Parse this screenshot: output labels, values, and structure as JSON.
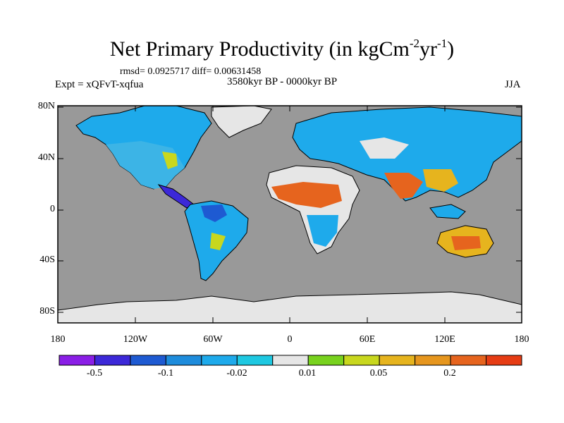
{
  "title_main": "Net Primary Productivity (in kgCm",
  "title_exp1": "-2",
  "title_mid": "yr",
  "title_exp2": "-1",
  "title_end": ")",
  "stats": "rmsd= 0.0925717 diff= 0.00631458",
  "experiment": "Expt = xQFvT-xqfua",
  "period": "3580kyr BP - 0000kyr BP",
  "season": "JJA",
  "lat_labels": [
    "80N",
    "40N",
    "0",
    "40S",
    "80S"
  ],
  "lon_labels": [
    "180",
    "120W",
    "60W",
    "0",
    "60E",
    "120E",
    "180"
  ],
  "colorbar": {
    "colors": [
      "#8a1ee6",
      "#3c28d8",
      "#1e5ad2",
      "#1e8cdc",
      "#1eaaeb",
      "#1ec8e1",
      "#e6e6e6",
      "#78d21e",
      "#c8d71e",
      "#e6b41e",
      "#e6961e",
      "#e6641e",
      "#e63c14"
    ],
    "labels": [
      "-0.5",
      "-0.1",
      "-0.02",
      "0.01",
      "0.05",
      "0.2"
    ]
  },
  "colors": {
    "ocean": "#999999",
    "land_neutral": "#e6e6e6"
  }
}
